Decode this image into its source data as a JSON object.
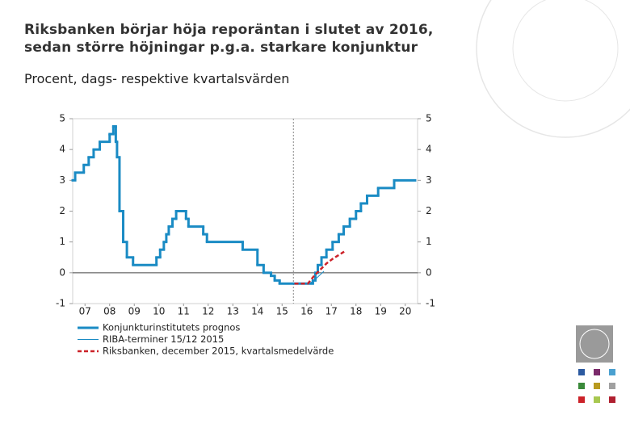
{
  "chart_data": {
    "type": "line",
    "title": "Riksbanken börjar höja reporäntan i slutet av 2016,",
    "title_line2": "sedan större höjningar p.g.a. starkare konjunktur",
    "subtitle": "Procent, dags- respektive kvartalsvärden",
    "xlim": [
      2007,
      2021
    ],
    "ylim": [
      -1,
      5
    ],
    "y2lim": [
      -1,
      5
    ],
    "yticks": [
      -1,
      0,
      1,
      2,
      3,
      4,
      5
    ],
    "y2ticks": [
      -1,
      0,
      1,
      2,
      3,
      4,
      5
    ],
    "xticks": [
      {
        "value": 2007.5,
        "label": "07"
      },
      {
        "value": 2008.5,
        "label": "08"
      },
      {
        "value": 2009.5,
        "label": "09"
      },
      {
        "value": 2010.5,
        "label": "10"
      },
      {
        "value": 2011.5,
        "label": "11"
      },
      {
        "value": 2012.5,
        "label": "12"
      },
      {
        "value": 2013.5,
        "label": "13"
      },
      {
        "value": 2014.5,
        "label": "14"
      },
      {
        "value": 2015.5,
        "label": "15"
      },
      {
        "value": 2016.5,
        "label": "16"
      },
      {
        "value": 2017.5,
        "label": "17"
      },
      {
        "value": 2018.5,
        "label": "18"
      },
      {
        "value": 2019.5,
        "label": "19"
      },
      {
        "value": 2020.5,
        "label": "20"
      }
    ],
    "forecast_start": 2015.96,
    "series": [
      {
        "name": "Konjunkturinstitutets prognos",
        "color": "#1a8bc4",
        "width": 3,
        "step": true,
        "x": [
          2007.0,
          2007.1,
          2007.45,
          2007.65,
          2007.85,
          2008.1,
          2008.5,
          2008.65,
          2008.75,
          2008.8,
          2008.9,
          2009.05,
          2009.2,
          2009.45,
          2010.4,
          2010.55,
          2010.7,
          2010.8,
          2010.9,
          2011.05,
          2011.2,
          2011.6,
          2011.7,
          2012.3,
          2012.45,
          2013.9,
          2014.5,
          2014.75,
          2015.05,
          2015.2,
          2015.4,
          2016.75,
          2016.85,
          2016.95,
          2017.1,
          2017.3,
          2017.55,
          2017.8,
          2018.0,
          2018.25,
          2018.5,
          2018.7,
          2018.95,
          2019.4,
          2020.05,
          2020.9
        ],
        "values": [
          3.0,
          3.25,
          3.5,
          3.75,
          4.0,
          4.25,
          4.5,
          4.75,
          4.25,
          3.75,
          2.0,
          1.0,
          0.5,
          0.25,
          0.5,
          0.75,
          1.0,
          1.25,
          1.5,
          1.75,
          2.0,
          1.75,
          1.5,
          1.25,
          1.0,
          0.75,
          0.25,
          0.0,
          -0.1,
          -0.25,
          -0.35,
          -0.25,
          0.0,
          0.25,
          0.5,
          0.75,
          1.0,
          1.25,
          1.5,
          1.75,
          2.0,
          2.25,
          2.5,
          2.75,
          3.0,
          3.0
        ]
      },
      {
        "name": "RIBA-terminer 15/12 2015",
        "color": "#1a8bc4",
        "width": 1,
        "step": false,
        "x": [
          2015.96,
          2016.6,
          2016.8,
          2017.0,
          2017.2
        ],
        "values": [
          -0.35,
          -0.35,
          -0.25,
          -0.1,
          0.05
        ]
      },
      {
        "name": "Riksbanken, december 2015, kvartalsmedelvärde",
        "color": "#cc2229",
        "width": 2.5,
        "dash": true,
        "step": false,
        "x": [
          2016.0,
          2016.3,
          2016.55,
          2016.8,
          2017.05,
          2017.3,
          2017.55,
          2017.85,
          2018.05
        ],
        "values": [
          -0.35,
          -0.35,
          -0.35,
          -0.1,
          0.1,
          0.3,
          0.45,
          0.6,
          0.7
        ]
      }
    ]
  }
}
